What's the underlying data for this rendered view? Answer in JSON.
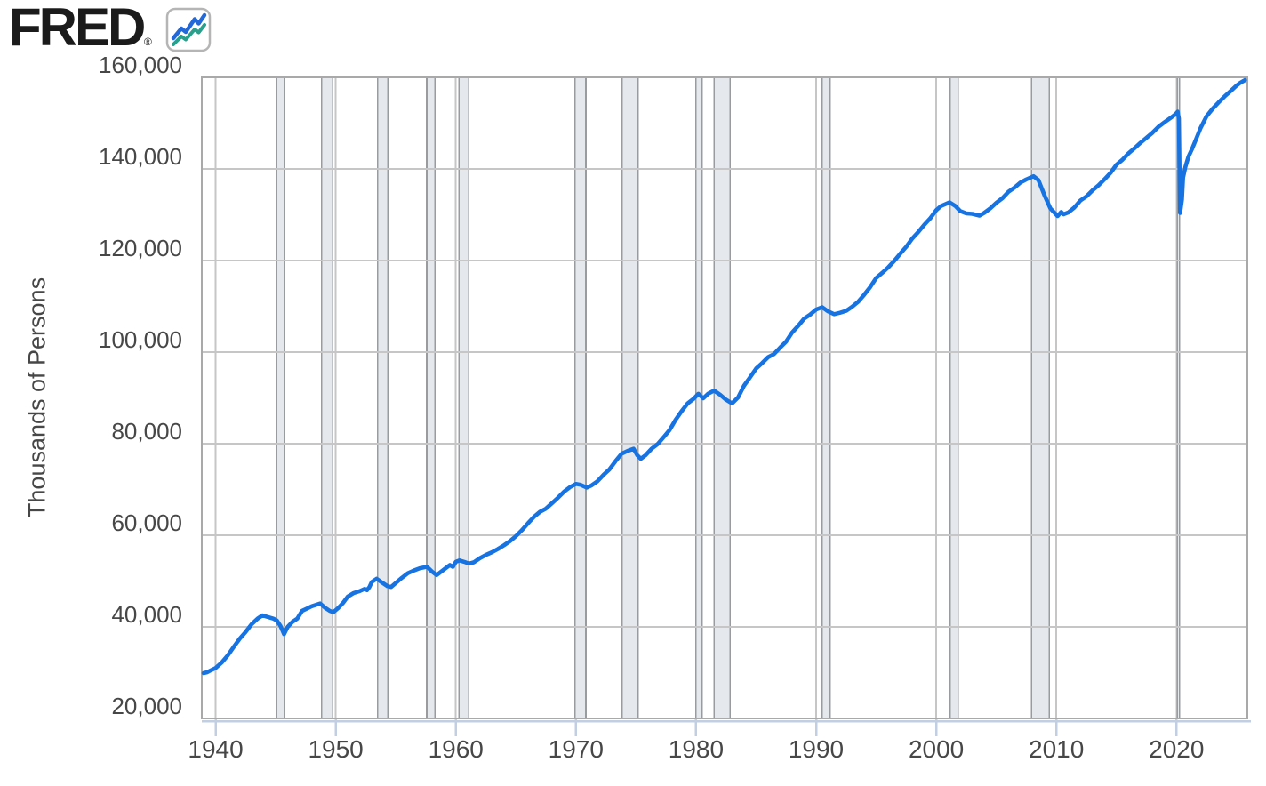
{
  "logo": {
    "text": "FRED",
    "registered_mark": "®",
    "icon": "fred-line-chart-icon"
  },
  "colors": {
    "line": "#1673e1",
    "logo_text": "#1b1b1b",
    "logo_icon_blue": "#2368d9",
    "logo_icon_green": "#28a08c",
    "logo_icon_border": "#b5b5b5",
    "gridline": "#c6c6c6",
    "plot_border": "#a9a9a9",
    "recession_fill": "#e5e9ed",
    "recession_edge": "#999c9f",
    "axis_line": "#c2cfe2",
    "tick_label": "#474747"
  },
  "chart_data": {
    "type": "line",
    "title": "",
    "xlabel": "",
    "ylabel": "Thousands of Persons",
    "grid": true,
    "legend_position": "none",
    "xlim": [
      1938.85,
      2025.9
    ],
    "ylim": [
      20000,
      160000
    ],
    "x_tick_values": [
      1940,
      1950,
      1960,
      1970,
      1980,
      1990,
      2000,
      2010,
      2020
    ],
    "x_tick_labels": [
      "1940",
      "1950",
      "1960",
      "1970",
      "1980",
      "1990",
      "2000",
      "2010",
      "2020"
    ],
    "y_tick_values": [
      20000,
      40000,
      60000,
      80000,
      100000,
      120000,
      140000,
      160000
    ],
    "y_tick_labels": [
      "20,000",
      "40,000",
      "60,000",
      "80,000",
      "100,000",
      "120,000",
      "140,000",
      "160,000"
    ],
    "recession_bands": [
      [
        1945.08,
        1945.75
      ],
      [
        1948.83,
        1949.75
      ],
      [
        1953.5,
        1954.33
      ],
      [
        1957.58,
        1958.25
      ],
      [
        1960.25,
        1961.08
      ],
      [
        1969.92,
        1970.83
      ],
      [
        1973.83,
        1975.17
      ],
      [
        1980.0,
        1980.5
      ],
      [
        1981.5,
        1982.83
      ],
      [
        1990.5,
        1991.17
      ],
      [
        2001.17,
        2001.83
      ],
      [
        2007.92,
        2009.42
      ],
      [
        2020.08,
        2020.25
      ]
    ],
    "series": [
      {
        "points": [
          [
            1939.0,
            29900
          ],
          [
            1939.3,
            30100
          ],
          [
            1939.6,
            30500
          ],
          [
            1940.0,
            31000
          ],
          [
            1940.5,
            32200
          ],
          [
            1941.0,
            33700
          ],
          [
            1941.5,
            35600
          ],
          [
            1942.0,
            37400
          ],
          [
            1942.5,
            38900
          ],
          [
            1943.0,
            40600
          ],
          [
            1943.5,
            41800
          ],
          [
            1943.9,
            42500
          ],
          [
            1944.3,
            42200
          ],
          [
            1944.8,
            41800
          ],
          [
            1945.1,
            41400
          ],
          [
            1945.4,
            40200
          ],
          [
            1945.7,
            38400
          ],
          [
            1946.0,
            40000
          ],
          [
            1946.4,
            41100
          ],
          [
            1946.8,
            41800
          ],
          [
            1947.2,
            43500
          ],
          [
            1947.6,
            44000
          ],
          [
            1948.0,
            44500
          ],
          [
            1948.7,
            45100
          ],
          [
            1949.1,
            44200
          ],
          [
            1949.5,
            43500
          ],
          [
            1949.8,
            43200
          ],
          [
            1950.2,
            44100
          ],
          [
            1950.6,
            45200
          ],
          [
            1951.0,
            46600
          ],
          [
            1951.5,
            47400
          ],
          [
            1952.0,
            47800
          ],
          [
            1952.4,
            48300
          ],
          [
            1952.6,
            48000
          ],
          [
            1952.8,
            48700
          ],
          [
            1953.0,
            49800
          ],
          [
            1953.4,
            50500
          ],
          [
            1953.9,
            49600
          ],
          [
            1954.3,
            48900
          ],
          [
            1954.6,
            48700
          ],
          [
            1955.0,
            49600
          ],
          [
            1955.5,
            50700
          ],
          [
            1956.0,
            51700
          ],
          [
            1956.5,
            52300
          ],
          [
            1957.0,
            52800
          ],
          [
            1957.6,
            53100
          ],
          [
            1958.0,
            52100
          ],
          [
            1958.4,
            51300
          ],
          [
            1958.8,
            52100
          ],
          [
            1959.3,
            53100
          ],
          [
            1959.5,
            53500
          ],
          [
            1959.75,
            53100
          ],
          [
            1960.0,
            54200
          ],
          [
            1960.3,
            54500
          ],
          [
            1960.7,
            54200
          ],
          [
            1961.1,
            53800
          ],
          [
            1961.5,
            54100
          ],
          [
            1962.0,
            55000
          ],
          [
            1962.5,
            55700
          ],
          [
            1963.0,
            56300
          ],
          [
            1963.5,
            57000
          ],
          [
            1964.0,
            57800
          ],
          [
            1964.5,
            58700
          ],
          [
            1965.0,
            59800
          ],
          [
            1965.5,
            61100
          ],
          [
            1966.0,
            62600
          ],
          [
            1966.5,
            64000
          ],
          [
            1967.0,
            65100
          ],
          [
            1967.5,
            65800
          ],
          [
            1968.0,
            67000
          ],
          [
            1968.5,
            68200
          ],
          [
            1969.0,
            69500
          ],
          [
            1969.5,
            70500
          ],
          [
            1970.0,
            71200
          ],
          [
            1970.4,
            71000
          ],
          [
            1970.9,
            70400
          ],
          [
            1971.3,
            70900
          ],
          [
            1971.8,
            71800
          ],
          [
            1972.3,
            73200
          ],
          [
            1972.8,
            74400
          ],
          [
            1973.3,
            76200
          ],
          [
            1973.8,
            77800
          ],
          [
            1974.3,
            78400
          ],
          [
            1974.8,
            78900
          ],
          [
            1975.1,
            77500
          ],
          [
            1975.4,
            76700
          ],
          [
            1975.8,
            77500
          ],
          [
            1976.3,
            78900
          ],
          [
            1976.8,
            79900
          ],
          [
            1977.3,
            81400
          ],
          [
            1977.8,
            83000
          ],
          [
            1978.3,
            85200
          ],
          [
            1978.8,
            87100
          ],
          [
            1979.3,
            88800
          ],
          [
            1979.8,
            89800
          ],
          [
            1980.2,
            90900
          ],
          [
            1980.6,
            89900
          ],
          [
            1981.0,
            90900
          ],
          [
            1981.5,
            91600
          ],
          [
            1982.0,
            90700
          ],
          [
            1982.5,
            89600
          ],
          [
            1983.0,
            88800
          ],
          [
            1983.5,
            90100
          ],
          [
            1984.0,
            92700
          ],
          [
            1984.5,
            94500
          ],
          [
            1985.0,
            96400
          ],
          [
            1985.5,
            97600
          ],
          [
            1986.0,
            98900
          ],
          [
            1986.5,
            99600
          ],
          [
            1987.0,
            101000
          ],
          [
            1987.5,
            102300
          ],
          [
            1988.0,
            104300
          ],
          [
            1988.5,
            105700
          ],
          [
            1989.0,
            107300
          ],
          [
            1989.5,
            108200
          ],
          [
            1990.0,
            109300
          ],
          [
            1990.5,
            109800
          ],
          [
            1991.0,
            108900
          ],
          [
            1991.5,
            108300
          ],
          [
            1992.0,
            108600
          ],
          [
            1992.5,
            109000
          ],
          [
            1993.0,
            109900
          ],
          [
            1993.5,
            111000
          ],
          [
            1994.0,
            112500
          ],
          [
            1994.5,
            114200
          ],
          [
            1995.0,
            116200
          ],
          [
            1995.5,
            117300
          ],
          [
            1996.0,
            118500
          ],
          [
            1996.5,
            119900
          ],
          [
            1997.0,
            121500
          ],
          [
            1997.5,
            123000
          ],
          [
            1998.0,
            124800
          ],
          [
            1998.5,
            126200
          ],
          [
            1999.0,
            127800
          ],
          [
            1999.5,
            129200
          ],
          [
            2000.0,
            131000
          ],
          [
            2000.4,
            131900
          ],
          [
            2001.1,
            132700
          ],
          [
            2001.6,
            131900
          ],
          [
            2002.0,
            130800
          ],
          [
            2002.5,
            130300
          ],
          [
            2003.0,
            130200
          ],
          [
            2003.6,
            129800
          ],
          [
            2004.0,
            130400
          ],
          [
            2004.5,
            131400
          ],
          [
            2005.0,
            132600
          ],
          [
            2005.5,
            133600
          ],
          [
            2006.0,
            135000
          ],
          [
            2006.5,
            135900
          ],
          [
            2007.0,
            137000
          ],
          [
            2007.5,
            137700
          ],
          [
            2008.1,
            138400
          ],
          [
            2008.5,
            137600
          ],
          [
            2009.0,
            134300
          ],
          [
            2009.5,
            131400
          ],
          [
            2010.1,
            129700
          ],
          [
            2010.4,
            130600
          ],
          [
            2010.6,
            130100
          ],
          [
            2011.0,
            130500
          ],
          [
            2011.5,
            131600
          ],
          [
            2012.0,
            133100
          ],
          [
            2012.5,
            134000
          ],
          [
            2013.0,
            135300
          ],
          [
            2013.5,
            136400
          ],
          [
            2014.0,
            137700
          ],
          [
            2014.5,
            139100
          ],
          [
            2015.0,
            140900
          ],
          [
            2015.5,
            142000
          ],
          [
            2016.0,
            143400
          ],
          [
            2016.5,
            144500
          ],
          [
            2017.0,
            145700
          ],
          [
            2017.5,
            146800
          ],
          [
            2018.0,
            147900
          ],
          [
            2018.5,
            149200
          ],
          [
            2019.0,
            150200
          ],
          [
            2019.5,
            151100
          ],
          [
            2019.9,
            151900
          ],
          [
            2020.1,
            152500
          ],
          [
            2020.2,
            151000
          ],
          [
            2020.3,
            130400
          ],
          [
            2020.45,
            133300
          ],
          [
            2020.55,
            138100
          ],
          [
            2020.75,
            140500
          ],
          [
            2021.0,
            142700
          ],
          [
            2021.3,
            144400
          ],
          [
            2021.6,
            146300
          ],
          [
            2022.0,
            148900
          ],
          [
            2022.5,
            151500
          ],
          [
            2023.0,
            153100
          ],
          [
            2023.5,
            154500
          ],
          [
            2024.0,
            155800
          ],
          [
            2024.5,
            157000
          ],
          [
            2025.0,
            158200
          ],
          [
            2025.3,
            158800
          ],
          [
            2025.7,
            159400
          ]
        ]
      }
    ]
  }
}
